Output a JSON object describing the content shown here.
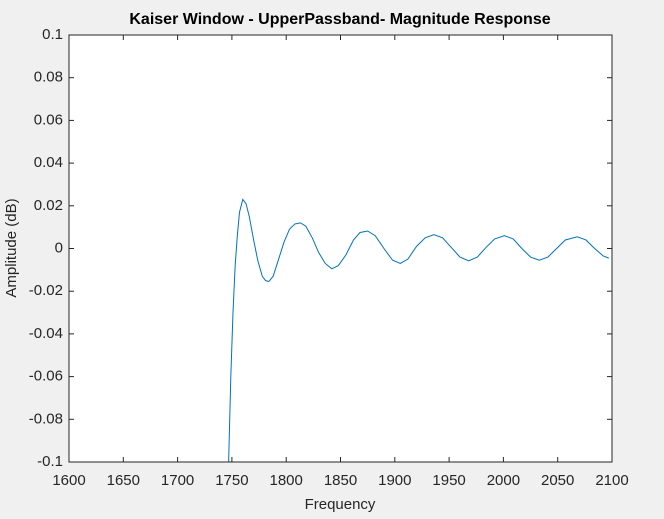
{
  "chart_data": {
    "type": "line",
    "title": "Kaiser Window - UpperPassband- Magnitude Response",
    "x_label": "Frequency",
    "y_label": "Amplitude (dB)",
    "x": [
      1747,
      1749,
      1751,
      1753,
      1755,
      1757,
      1760,
      1763,
      1766,
      1770,
      1774,
      1778,
      1781,
      1784,
      1788,
      1793,
      1798,
      1803,
      1808,
      1813,
      1818,
      1824,
      1830,
      1836,
      1842,
      1848,
      1855,
      1862,
      1868,
      1875,
      1882,
      1890,
      1898,
      1905,
      1912,
      1920,
      1928,
      1936,
      1944,
      1952,
      1960,
      1968,
      1976,
      1984,
      1992,
      2001,
      2009,
      2017,
      2025,
      2033,
      2041,
      2049,
      2057,
      2068,
      2076,
      2084,
      2092,
      2097
    ],
    "series": [
      {
        "color": "#0072bd",
        "values": [
          -0.1,
          -0.06,
          -0.03,
          -0.008,
          0.006,
          0.017,
          0.023,
          0.021,
          0.015,
          0.004,
          -0.006,
          -0.013,
          -0.015,
          -0.0155,
          -0.013,
          -0.005,
          0.003,
          0.009,
          0.0115,
          0.012,
          0.0105,
          0.005,
          -0.002,
          -0.007,
          -0.0095,
          -0.008,
          -0.003,
          0.004,
          0.0075,
          0.0082,
          0.006,
          0.0,
          -0.0055,
          -0.007,
          -0.005,
          0.001,
          0.005,
          0.0065,
          0.005,
          0.0005,
          -0.004,
          -0.0058,
          -0.004,
          0.0005,
          0.0045,
          0.006,
          0.0045,
          0.0,
          -0.004,
          -0.0055,
          -0.004,
          0.0,
          0.004,
          0.0055,
          0.004,
          0.0,
          -0.0035,
          -0.0045
        ]
      }
    ],
    "xlim": [
      1600,
      2100
    ],
    "ylim": [
      -0.1,
      0.1
    ],
    "xticks": [
      1600,
      1650,
      1700,
      1750,
      1800,
      1850,
      1900,
      1950,
      2000,
      2050,
      2100
    ],
    "yticks": [
      -0.1,
      -0.08,
      -0.06,
      -0.04,
      -0.02,
      0,
      0.02,
      0.04,
      0.06,
      0.08,
      0.1
    ],
    "grid": false
  }
}
